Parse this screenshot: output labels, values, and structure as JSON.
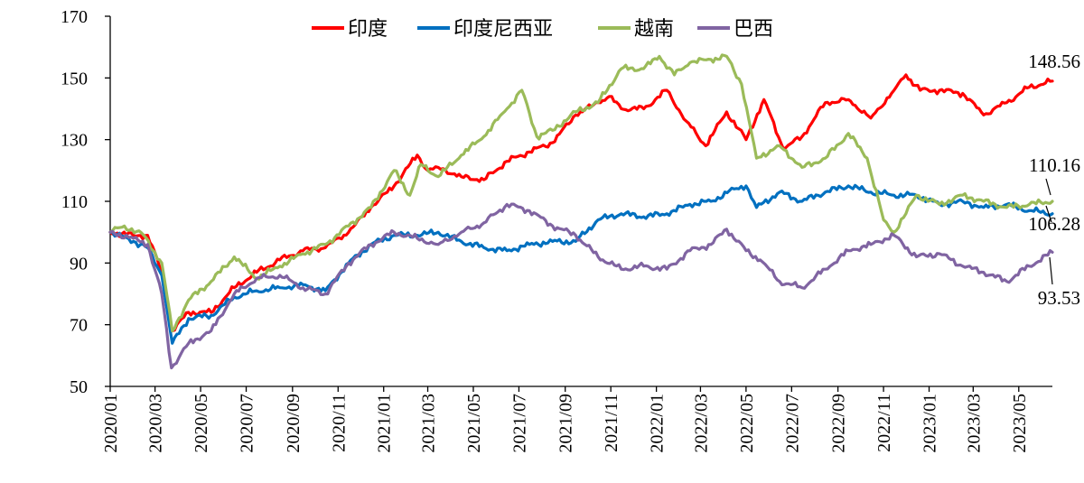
{
  "chart_data": {
    "type": "line",
    "ylim": [
      50,
      170
    ],
    "yticks": [
      50,
      70,
      90,
      110,
      130,
      150,
      170
    ],
    "xlim": [
      "2020-01-01",
      "2023-06-15"
    ],
    "xticks": [
      "2020/01",
      "2020/03",
      "2020/05",
      "2020/07",
      "2020/09",
      "2020/11",
      "2021/01",
      "2021/03",
      "2021/05",
      "2021/07",
      "2021/09",
      "2021/11",
      "2022/01",
      "2022/03",
      "2022/05",
      "2022/07",
      "2022/09",
      "2022/11",
      "2023/01",
      "2023/03",
      "2023/05"
    ],
    "grid": false,
    "legend_position": "top",
    "series": [
      {
        "name": "印度",
        "color": "#ff0000",
        "end_label": "148.56",
        "points": [
          [
            "2020-01-01",
            100
          ],
          [
            "2020-02-01",
            99
          ],
          [
            "2020-02-20",
            99
          ],
          [
            "2020-03-10",
            87
          ],
          [
            "2020-03-24",
            68
          ],
          [
            "2020-04-15",
            74
          ],
          [
            "2020-05-15",
            74
          ],
          [
            "2020-06-15",
            82
          ],
          [
            "2020-07-15",
            87
          ],
          [
            "2020-08-15",
            91
          ],
          [
            "2020-09-15",
            94
          ],
          [
            "2020-10-15",
            95
          ],
          [
            "2020-11-15",
            100
          ],
          [
            "2020-12-15",
            108
          ],
          [
            "2021-01-15",
            115
          ],
          [
            "2021-02-15",
            125
          ],
          [
            "2021-03-01",
            120
          ],
          [
            "2021-03-15",
            121
          ],
          [
            "2021-04-15",
            118
          ],
          [
            "2021-05-15",
            117
          ],
          [
            "2021-06-15",
            123
          ],
          [
            "2021-07-15",
            126
          ],
          [
            "2021-08-15",
            129
          ],
          [
            "2021-09-15",
            138
          ],
          [
            "2021-10-15",
            142
          ],
          [
            "2021-10-30",
            144
          ],
          [
            "2021-11-15",
            140
          ],
          [
            "2021-12-15",
            140
          ],
          [
            "2022-01-15",
            146
          ],
          [
            "2022-02-10",
            136
          ],
          [
            "2022-03-08",
            128
          ],
          [
            "2022-04-05",
            139
          ],
          [
            "2022-05-01",
            130
          ],
          [
            "2022-05-25",
            143
          ],
          [
            "2022-06-20",
            127
          ],
          [
            "2022-07-15",
            131
          ],
          [
            "2022-08-15",
            142
          ],
          [
            "2022-09-15",
            143
          ],
          [
            "2022-10-15",
            137
          ],
          [
            "2022-11-15",
            146
          ],
          [
            "2022-12-01",
            151
          ],
          [
            "2022-12-20",
            146
          ],
          [
            "2023-01-15",
            146
          ],
          [
            "2023-02-15",
            145
          ],
          [
            "2023-03-15",
            138
          ],
          [
            "2023-04-15",
            142
          ],
          [
            "2023-05-15",
            147
          ],
          [
            "2023-06-15",
            149
          ]
        ]
      },
      {
        "name": "印度尼西亚",
        "color": "#0070c0",
        "end_label": "106.28",
        "points": [
          [
            "2020-01-01",
            100
          ],
          [
            "2020-02-01",
            97
          ],
          [
            "2020-02-20",
            95
          ],
          [
            "2020-03-10",
            86
          ],
          [
            "2020-03-24",
            64
          ],
          [
            "2020-04-15",
            72
          ],
          [
            "2020-05-15",
            73
          ],
          [
            "2020-06-15",
            79
          ],
          [
            "2020-07-15",
            81
          ],
          [
            "2020-08-15",
            82
          ],
          [
            "2020-09-15",
            83
          ],
          [
            "2020-10-15",
            81
          ],
          [
            "2020-11-15",
            90
          ],
          [
            "2020-12-15",
            96
          ],
          [
            "2021-01-15",
            99
          ],
          [
            "2021-02-15",
            99
          ],
          [
            "2021-03-15",
            100
          ],
          [
            "2021-04-15",
            97
          ],
          [
            "2021-05-15",
            95
          ],
          [
            "2021-06-15",
            94
          ],
          [
            "2021-07-15",
            96
          ],
          [
            "2021-08-15",
            97
          ],
          [
            "2021-09-15",
            97
          ],
          [
            "2021-10-15",
            104
          ],
          [
            "2021-11-15",
            106
          ],
          [
            "2021-12-15",
            105
          ],
          [
            "2022-01-15",
            106
          ],
          [
            "2022-02-15",
            109
          ],
          [
            "2022-03-15",
            110
          ],
          [
            "2022-04-15",
            114
          ],
          [
            "2022-05-01",
            115
          ],
          [
            "2022-05-15",
            108
          ],
          [
            "2022-06-15",
            113
          ],
          [
            "2022-07-15",
            110
          ],
          [
            "2022-08-15",
            113
          ],
          [
            "2022-09-15",
            115
          ],
          [
            "2022-10-15",
            113
          ],
          [
            "2022-11-15",
            112
          ],
          [
            "2022-12-15",
            112
          ],
          [
            "2023-01-15",
            109
          ],
          [
            "2023-02-15",
            110
          ],
          [
            "2023-03-15",
            108
          ],
          [
            "2023-04-15",
            109
          ],
          [
            "2023-05-15",
            107
          ],
          [
            "2023-06-15",
            106
          ]
        ]
      },
      {
        "name": "越南",
        "color": "#9bbb59",
        "end_label": "110.16",
        "points": [
          [
            "2020-01-01",
            100
          ],
          [
            "2020-01-20",
            102
          ],
          [
            "2020-02-15",
            99
          ],
          [
            "2020-03-10",
            90
          ],
          [
            "2020-03-24",
            68
          ],
          [
            "2020-04-15",
            78
          ],
          [
            "2020-05-15",
            84
          ],
          [
            "2020-06-15",
            92
          ],
          [
            "2020-07-15",
            85
          ],
          [
            "2020-08-15",
            89
          ],
          [
            "2020-09-15",
            93
          ],
          [
            "2020-10-15",
            96
          ],
          [
            "2020-11-15",
            102
          ],
          [
            "2020-12-15",
            108
          ],
          [
            "2021-01-15",
            120
          ],
          [
            "2021-02-05",
            112
          ],
          [
            "2021-02-20",
            122
          ],
          [
            "2021-03-15",
            118
          ],
          [
            "2021-04-15",
            125
          ],
          [
            "2021-05-15",
            131
          ],
          [
            "2021-06-15",
            140
          ],
          [
            "2021-07-05",
            146
          ],
          [
            "2021-07-25",
            131
          ],
          [
            "2021-08-15",
            133
          ],
          [
            "2021-09-15",
            139
          ],
          [
            "2021-10-15",
            142
          ],
          [
            "2021-11-15",
            153
          ],
          [
            "2021-12-15",
            153
          ],
          [
            "2022-01-05",
            157
          ],
          [
            "2022-01-25",
            151
          ],
          [
            "2022-02-15",
            155
          ],
          [
            "2022-03-15",
            156
          ],
          [
            "2022-04-05",
            157
          ],
          [
            "2022-04-25",
            148
          ],
          [
            "2022-05-15",
            124
          ],
          [
            "2022-06-15",
            128
          ],
          [
            "2022-07-15",
            121
          ],
          [
            "2022-08-15",
            124
          ],
          [
            "2022-09-15",
            132
          ],
          [
            "2022-10-10",
            124
          ],
          [
            "2022-11-01",
            104
          ],
          [
            "2022-11-15",
            100
          ],
          [
            "2022-12-01",
            106
          ],
          [
            "2022-12-15",
            112
          ],
          [
            "2023-01-15",
            109
          ],
          [
            "2023-02-15",
            112
          ],
          [
            "2023-03-15",
            110
          ],
          [
            "2023-04-15",
            108
          ],
          [
            "2023-05-15",
            109
          ],
          [
            "2023-06-15",
            110
          ]
        ]
      },
      {
        "name": "巴西",
        "color": "#8064a2",
        "end_label": "93.53",
        "points": [
          [
            "2020-01-01",
            100
          ],
          [
            "2020-02-01",
            98
          ],
          [
            "2020-02-20",
            96
          ],
          [
            "2020-03-10",
            80
          ],
          [
            "2020-03-23",
            56
          ],
          [
            "2020-04-15",
            64
          ],
          [
            "2020-05-15",
            68
          ],
          [
            "2020-06-15",
            80
          ],
          [
            "2020-07-15",
            85
          ],
          [
            "2020-08-15",
            86
          ],
          [
            "2020-09-15",
            82
          ],
          [
            "2020-10-15",
            80
          ],
          [
            "2020-11-15",
            90
          ],
          [
            "2020-12-15",
            96
          ],
          [
            "2021-01-15",
            100
          ],
          [
            "2021-02-15",
            98
          ],
          [
            "2021-03-15",
            96
          ],
          [
            "2021-04-15",
            100
          ],
          [
            "2021-05-15",
            103
          ],
          [
            "2021-06-15",
            109
          ],
          [
            "2021-07-15",
            107
          ],
          [
            "2021-08-15",
            102
          ],
          [
            "2021-09-15",
            99
          ],
          [
            "2021-10-15",
            92
          ],
          [
            "2021-11-15",
            88
          ],
          [
            "2021-12-15",
            89
          ],
          [
            "2022-01-15",
            88
          ],
          [
            "2022-02-15",
            94
          ],
          [
            "2022-03-15",
            96
          ],
          [
            "2022-04-05",
            101
          ],
          [
            "2022-05-01",
            94
          ],
          [
            "2022-05-20",
            91
          ],
          [
            "2022-06-15",
            84
          ],
          [
            "2022-07-15",
            82
          ],
          [
            "2022-08-15",
            88
          ],
          [
            "2022-09-15",
            94
          ],
          [
            "2022-10-15",
            96
          ],
          [
            "2022-11-15",
            99
          ],
          [
            "2022-12-15",
            92
          ],
          [
            "2023-01-15",
            93
          ],
          [
            "2023-02-15",
            89
          ],
          [
            "2023-03-15",
            87
          ],
          [
            "2023-04-15",
            84
          ],
          [
            "2023-05-15",
            89
          ],
          [
            "2023-06-15",
            93.5
          ]
        ]
      }
    ]
  }
}
